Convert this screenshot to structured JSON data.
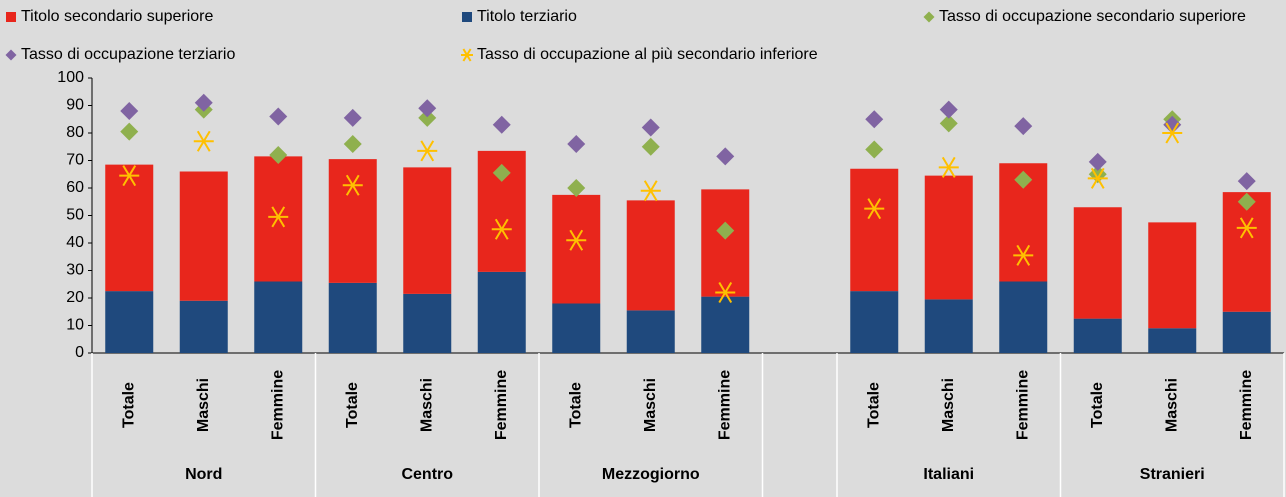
{
  "chart_data": {
    "type": "bar",
    "stacked": true,
    "grid": false,
    "legend": "top",
    "categories": [
      "Totale",
      "Maschi",
      "Femmine",
      "Totale",
      "Maschi",
      "Femmine",
      "Totale",
      "Maschi",
      "Femmine",
      null,
      "Totale",
      "Maschi",
      "Femmine",
      "Totale",
      "Maschi",
      "Femmine"
    ],
    "category_groups": [
      "Nord",
      "Nord",
      "Nord",
      "Centro",
      "Centro",
      "Centro",
      "Mezzogiorno",
      "Mezzogiorno",
      "Mezzogiorno",
      null,
      "Italiani",
      "Italiani",
      "Italiani",
      "Stranieri",
      "Stranieri",
      "Stranieri"
    ],
    "ylim": [
      0,
      100
    ],
    "yticks": [
      0,
      10,
      20,
      30,
      40,
      50,
      60,
      70,
      80,
      90,
      100
    ],
    "series": [
      {
        "name": "Titolo terziario",
        "type": "bar",
        "color": "#1f497d",
        "values": [
          22.5,
          19,
          26,
          25.5,
          21.5,
          29.5,
          18,
          15.5,
          20.5,
          null,
          22.5,
          19.5,
          26,
          12.5,
          9,
          15
        ]
      },
      {
        "name": "Titolo secondario superiore",
        "type": "bar",
        "color": "#e8261c",
        "values": [
          46,
          47,
          45.5,
          45,
          46,
          44,
          39.5,
          40,
          39,
          null,
          44.5,
          45,
          43,
          40.5,
          38.5,
          43.5
        ]
      },
      {
        "name": "Tasso di occupazione secondario superiore",
        "type": "scatter",
        "marker": "diamond",
        "color": "#8fb04e",
        "values": [
          80.5,
          88.5,
          72,
          76,
          85.5,
          65.5,
          60,
          75,
          44.5,
          null,
          74,
          83.5,
          63,
          65,
          85,
          55
        ]
      },
      {
        "name": "Tasso di occupazione terziario",
        "type": "scatter",
        "marker": "diamond",
        "color": "#8064a2",
        "values": [
          88,
          91,
          86,
          85.5,
          89,
          83,
          76,
          82,
          71.5,
          null,
          85,
          88.5,
          82.5,
          69.5,
          83,
          62.5
        ]
      },
      {
        "name": "Tasso di occupazione al più secondario inferiore",
        "type": "scatter",
        "marker": "asterisk",
        "color": "#ffc000",
        "values": [
          64.5,
          77,
          49.5,
          61,
          73.5,
          45,
          41,
          59,
          22,
          null,
          52.5,
          67.5,
          35.5,
          63.5,
          80,
          45.5
        ]
      }
    ],
    "legend_order": [
      1,
      0,
      2,
      3,
      4
    ]
  }
}
